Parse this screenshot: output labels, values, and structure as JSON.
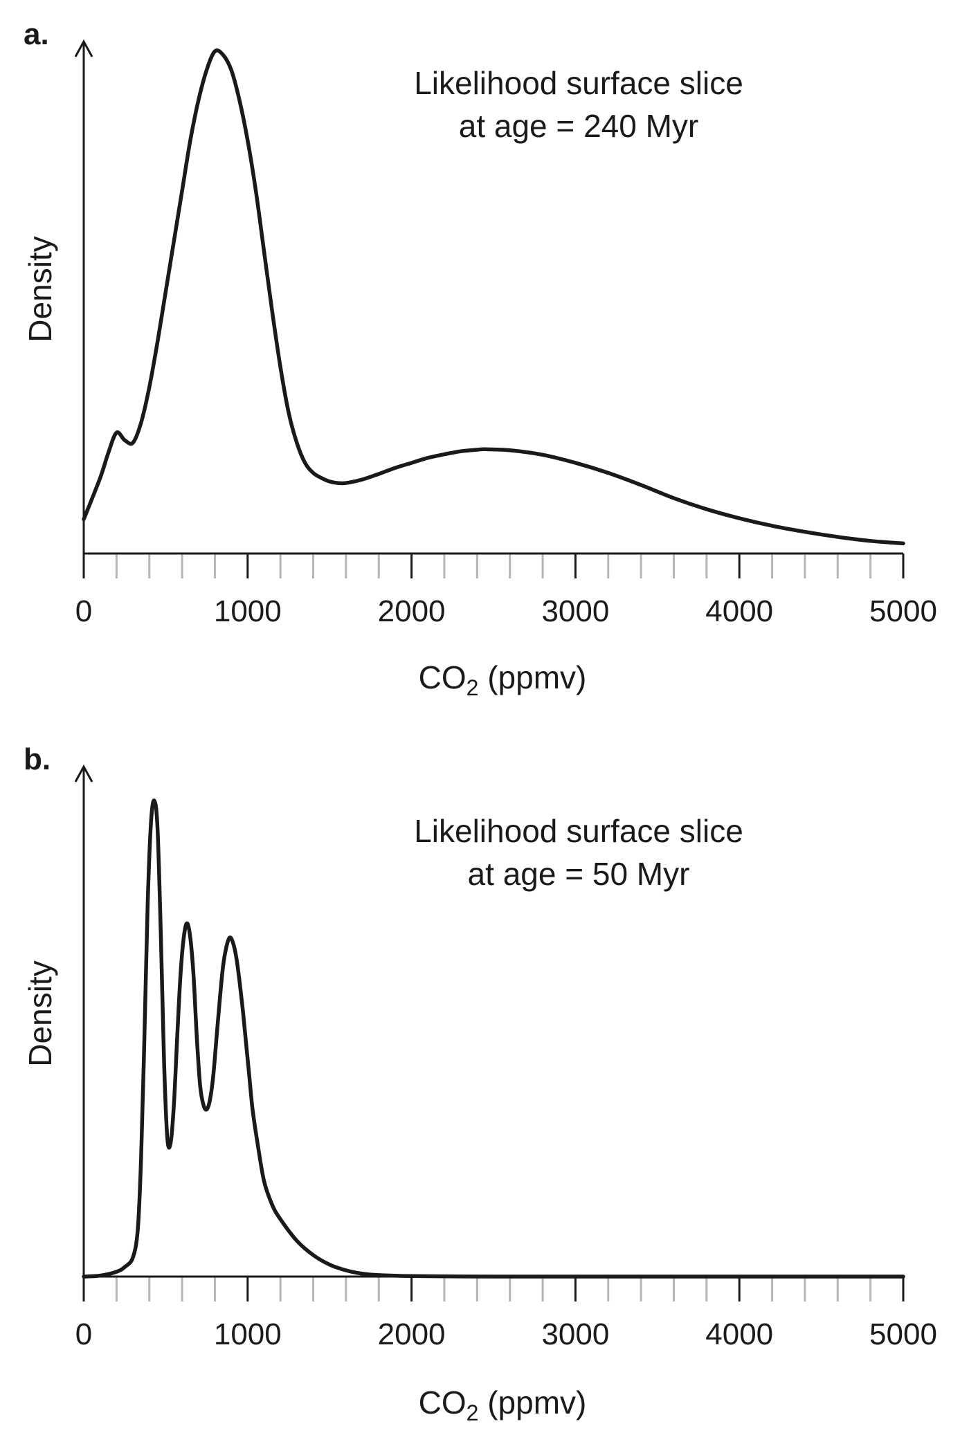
{
  "chart_data": [
    {
      "type": "line",
      "panel_label": "a.",
      "title_line1": "Likelihood surface slice",
      "title_line2": "at age = 240 Myr",
      "xlabel_main": "CO",
      "xlabel_sub": "2",
      "xlabel_tail": " (ppmv)",
      "ylabel": "Density",
      "xlim": [
        0,
        5000
      ],
      "ylim": [
        0,
        1
      ],
      "x_ticks": [
        0,
        1000,
        2000,
        3000,
        4000,
        5000
      ],
      "x_tick_labels": [
        "0",
        "1000",
        "2000",
        "3000",
        "4000",
        "5000"
      ],
      "minor_tick_step": 200,
      "series": [
        {
          "name": "density",
          "x": [
            0,
            100,
            150,
            200,
            250,
            300,
            350,
            400,
            450,
            500,
            550,
            600,
            650,
            700,
            750,
            800,
            850,
            900,
            950,
            1000,
            1050,
            1100,
            1150,
            1200,
            1250,
            1300,
            1350,
            1400,
            1450,
            1500,
            1550,
            1600,
            1700,
            1800,
            1900,
            2000,
            2100,
            2200,
            2300,
            2400,
            2450,
            2600,
            2800,
            3000,
            3200,
            3400,
            3600,
            3800,
            4000,
            4200,
            4400,
            4600,
            4800,
            5000
          ],
          "y": [
            0.068,
            0.15,
            0.2,
            0.24,
            0.225,
            0.22,
            0.26,
            0.33,
            0.42,
            0.52,
            0.62,
            0.72,
            0.82,
            0.9,
            0.96,
            0.997,
            0.99,
            0.96,
            0.9,
            0.82,
            0.72,
            0.6,
            0.48,
            0.37,
            0.28,
            0.22,
            0.18,
            0.16,
            0.15,
            0.143,
            0.14,
            0.14,
            0.147,
            0.158,
            0.17,
            0.18,
            0.19,
            0.197,
            0.203,
            0.206,
            0.207,
            0.205,
            0.196,
            0.18,
            0.16,
            0.136,
            0.11,
            0.088,
            0.07,
            0.055,
            0.043,
            0.033,
            0.025,
            0.02
          ]
        }
      ]
    },
    {
      "type": "line",
      "panel_label": "b.",
      "title_line1": "Likelihood surface slice",
      "title_line2": "at age = 50 Myr",
      "xlabel_main": "CO",
      "xlabel_sub": "2",
      "xlabel_tail": " (ppmv)",
      "ylabel": "Density",
      "xlim": [
        0,
        5000
      ],
      "ylim": [
        0,
        1
      ],
      "x_ticks": [
        0,
        1000,
        2000,
        3000,
        4000,
        5000
      ],
      "x_tick_labels": [
        "0",
        "1000",
        "2000",
        "3000",
        "4000",
        "5000"
      ],
      "minor_tick_step": 200,
      "series": [
        {
          "name": "density",
          "x": [
            0,
            100,
            200,
            250,
            300,
            330,
            350,
            370,
            390,
            410,
            430,
            450,
            470,
            490,
            510,
            530,
            550,
            570,
            590,
            610,
            630,
            650,
            670,
            690,
            710,
            730,
            750,
            770,
            790,
            810,
            830,
            850,
            870,
            890,
            910,
            930,
            950,
            970,
            990,
            1010,
            1030,
            1060,
            1100,
            1150,
            1200,
            1300,
            1400,
            1500,
            1600,
            1700,
            1800,
            2000,
            2500,
            3000,
            4000,
            5000
          ],
          "y": [
            0,
            0.002,
            0.01,
            0.02,
            0.04,
            0.1,
            0.25,
            0.5,
            0.78,
            0.95,
            0.997,
            0.94,
            0.72,
            0.45,
            0.29,
            0.28,
            0.36,
            0.5,
            0.63,
            0.71,
            0.74,
            0.71,
            0.63,
            0.5,
            0.4,
            0.36,
            0.35,
            0.37,
            0.42,
            0.5,
            0.58,
            0.65,
            0.69,
            0.71,
            0.7,
            0.67,
            0.62,
            0.56,
            0.49,
            0.42,
            0.35,
            0.28,
            0.2,
            0.15,
            0.12,
            0.075,
            0.045,
            0.025,
            0.013,
            0.006,
            0.003,
            0.001,
            0,
            0,
            0,
            0
          ]
        }
      ]
    }
  ]
}
